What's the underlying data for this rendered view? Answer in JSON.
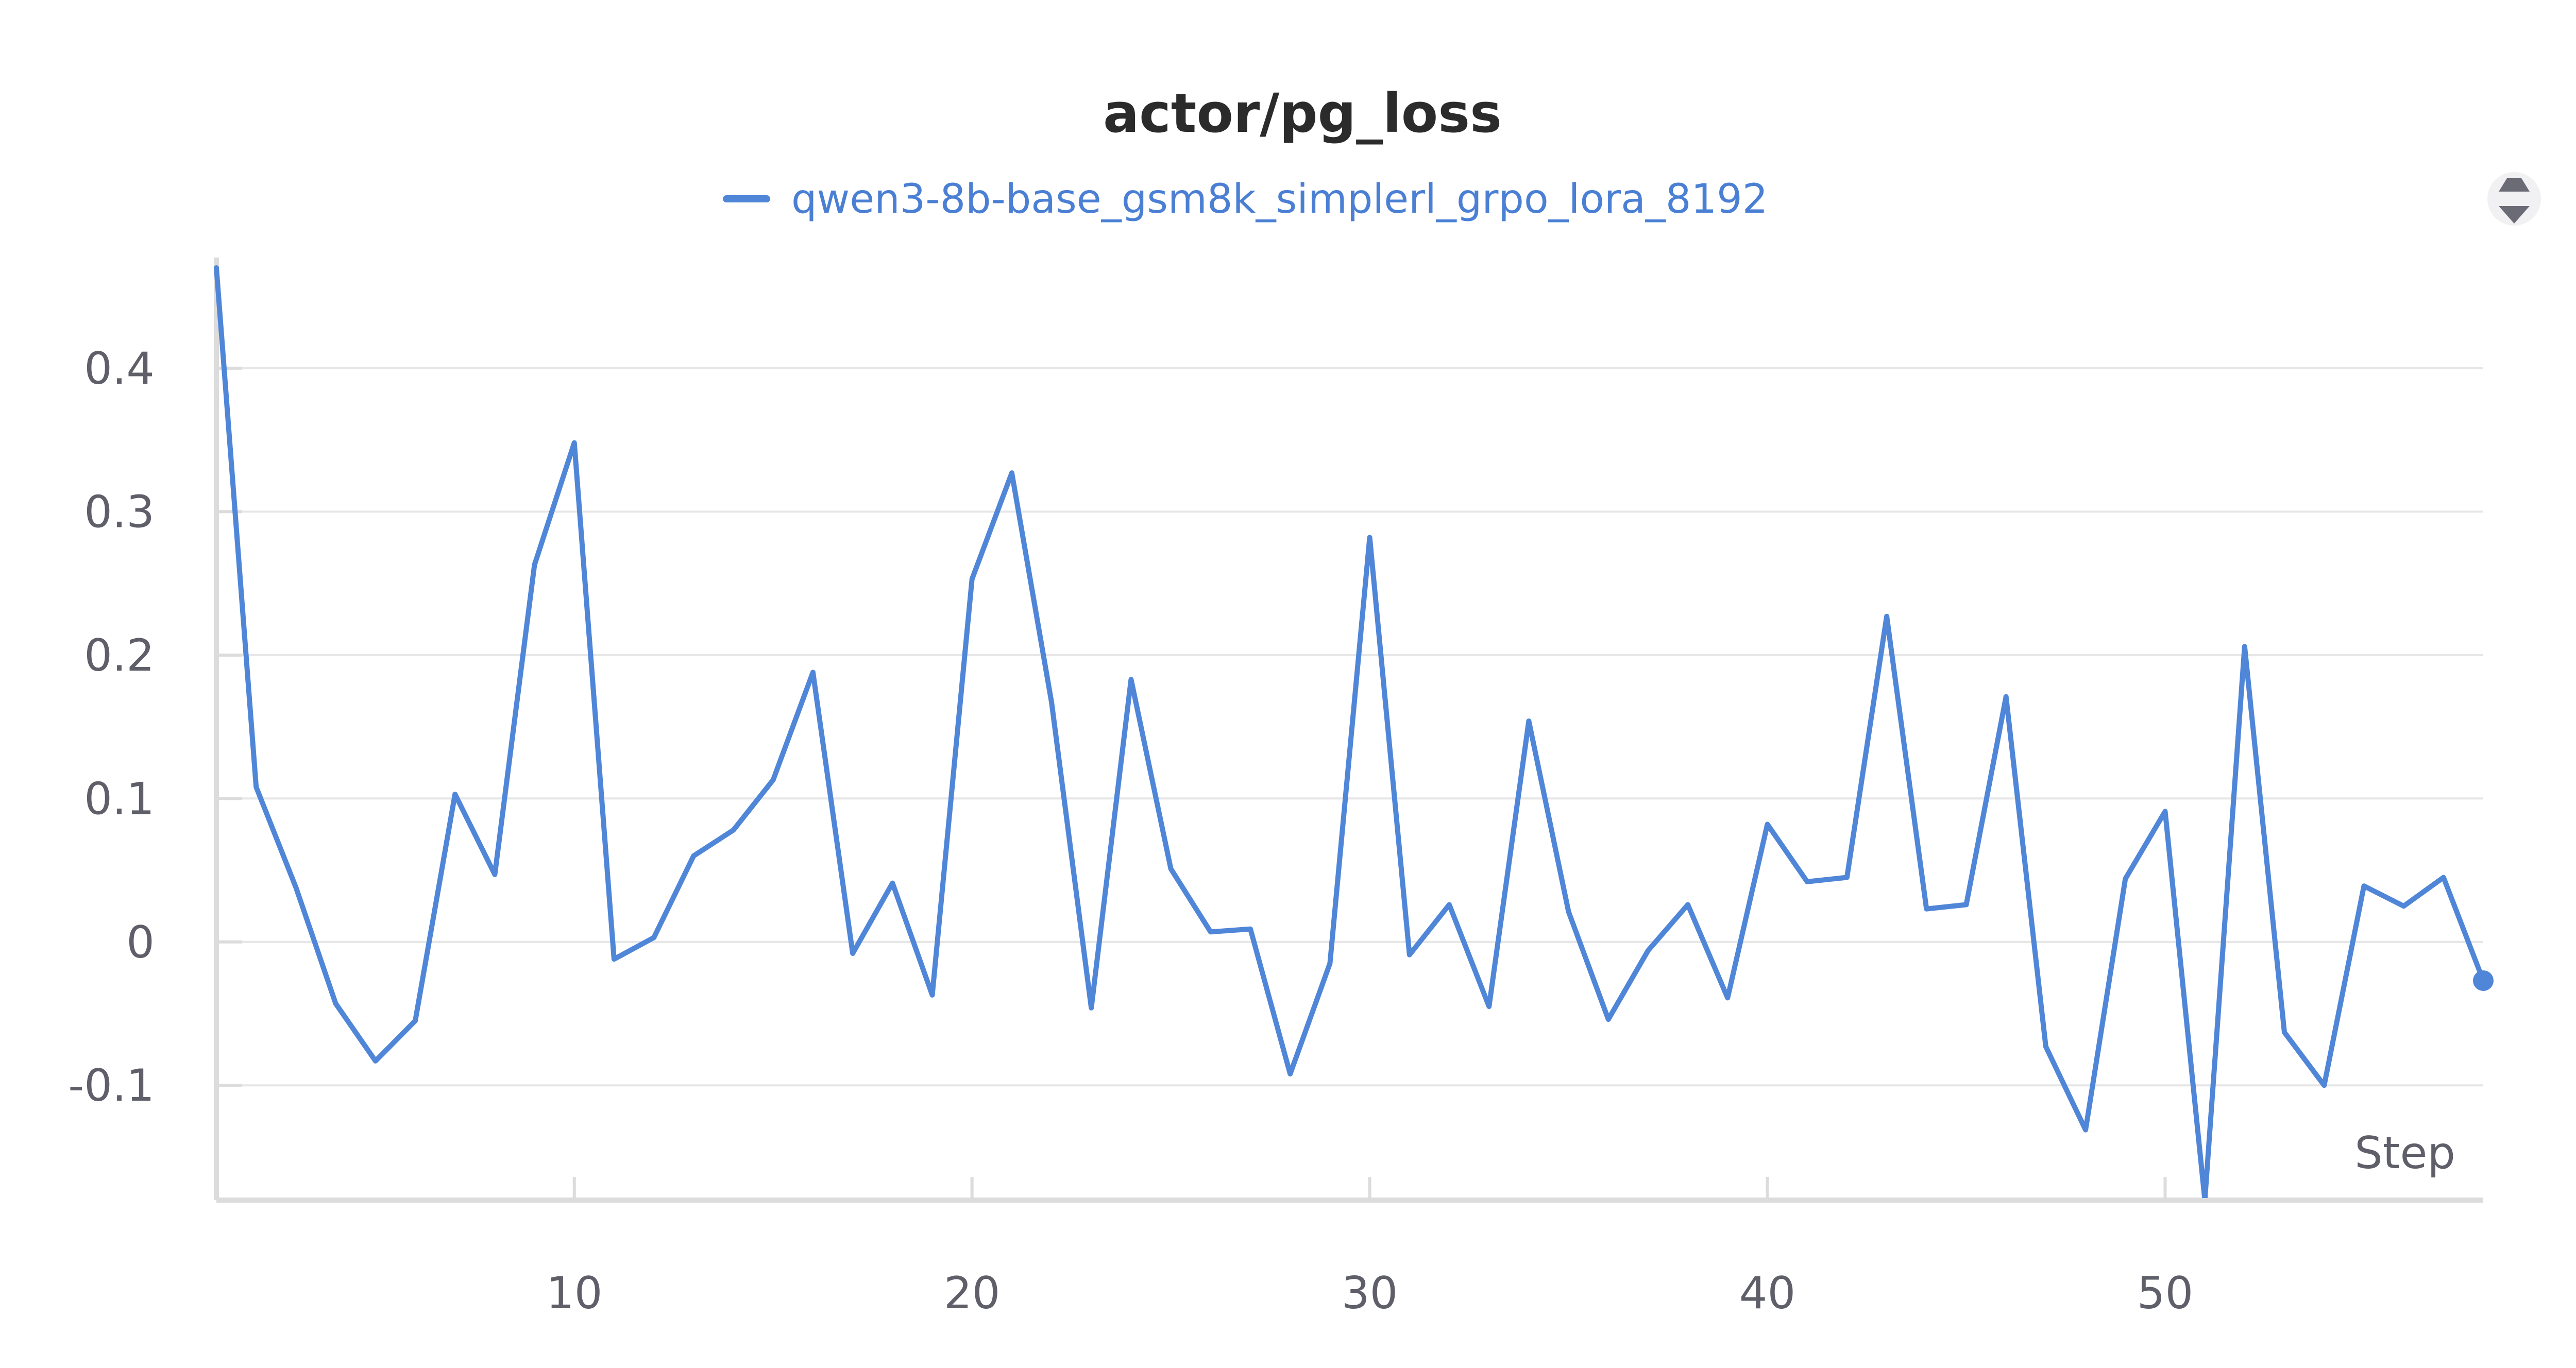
{
  "chart_data": {
    "type": "line",
    "title": "actor/pg_loss",
    "xlabel": "Step",
    "ylabel": "",
    "xlim": [
      1,
      58
    ],
    "ylim": [
      -0.18,
      0.47
    ],
    "x_ticks": [
      10,
      20,
      30,
      40,
      50
    ],
    "y_ticks": [
      -0.1,
      0,
      0.1,
      0.2,
      0.3,
      0.4
    ],
    "y_tick_labels": [
      "-0.1",
      "0",
      "0.1",
      "0.2",
      "0.3",
      "0.4"
    ],
    "x_tick_labels": [
      "10",
      "20",
      "30",
      "40",
      "50"
    ],
    "grid": true,
    "legend_position": "top-center",
    "series": [
      {
        "name": "qwen3-8b-base_gsm8k_simplerl_grpo_lora_8192",
        "color": "#5086d8",
        "x": [
          1,
          2,
          3,
          4,
          5,
          6,
          7,
          8,
          9,
          10,
          11,
          12,
          13,
          14,
          15,
          16,
          17,
          18,
          19,
          20,
          21,
          22,
          23,
          24,
          25,
          26,
          27,
          28,
          29,
          30,
          31,
          32,
          33,
          34,
          35,
          36,
          37,
          38,
          39,
          40,
          41,
          42,
          43,
          44,
          45,
          46,
          47,
          48,
          49,
          50,
          51,
          52,
          53,
          54,
          55,
          56,
          57,
          58
        ],
        "values": [
          0.47,
          0.108,
          0.038,
          -0.043,
          -0.083,
          -0.055,
          0.103,
          0.047,
          0.263,
          0.348,
          -0.012,
          0.003,
          0.06,
          0.078,
          0.113,
          0.188,
          -0.008,
          0.041,
          -0.037,
          0.253,
          0.327,
          0.167,
          -0.046,
          0.183,
          0.051,
          0.007,
          0.009,
          -0.092,
          -0.015,
          0.282,
          -0.009,
          0.026,
          -0.045,
          0.154,
          0.021,
          -0.054,
          -0.006,
          0.026,
          -0.039,
          0.082,
          0.042,
          0.045,
          0.227,
          0.023,
          0.026,
          0.171,
          -0.073,
          -0.131,
          0.044,
          0.091,
          -0.18,
          0.206,
          -0.063,
          -0.1,
          0.039,
          0.025,
          0.045,
          -0.027
        ]
      }
    ]
  },
  "ui": {
    "menu_icon": "sort-arrows-icon"
  }
}
